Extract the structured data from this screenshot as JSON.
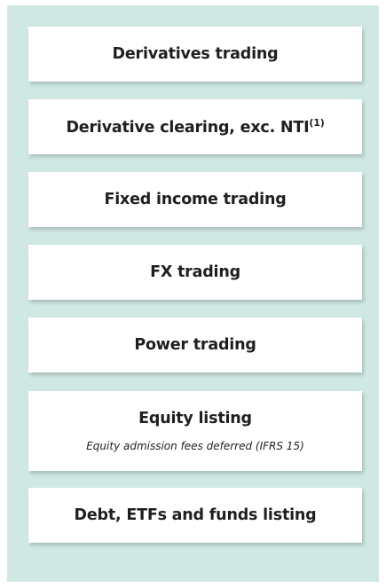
{
  "boxes": [
    {
      "label": "Derivatives trading"
    },
    {
      "label": "Derivative clearing, exc. NTI",
      "superscript": "(1)"
    },
    {
      "label": "Fixed income trading"
    },
    {
      "label": "FX trading"
    },
    {
      "label": "Power trading"
    },
    {
      "label": "Equity listing",
      "note": "Equity admission fees deferred (IFRS 15)"
    },
    {
      "label": "Debt, ETFs and funds listing"
    }
  ]
}
